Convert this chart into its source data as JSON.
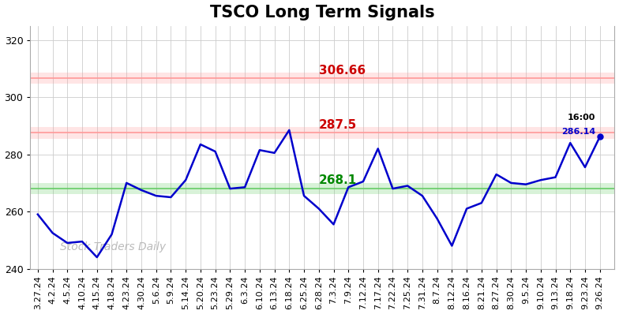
{
  "title": "TSCO Long Term Signals",
  "x_labels": [
    "3.27.24",
    "4.2.24",
    "4.5.24",
    "4.10.24",
    "4.15.24",
    "4.18.24",
    "4.23.24",
    "4.30.24",
    "5.6.24",
    "5.9.24",
    "5.14.24",
    "5.20.24",
    "5.23.24",
    "5.29.24",
    "6.3.24",
    "6.10.24",
    "6.13.24",
    "6.18.24",
    "6.25.24",
    "6.28.24",
    "7.3.24",
    "7.9.24",
    "7.12.24",
    "7.17.24",
    "7.22.24",
    "7.25.24",
    "7.31.24",
    "8.7.24",
    "8.12.24",
    "8.16.24",
    "8.21.24",
    "8.27.24",
    "8.30.24",
    "9.5.24",
    "9.10.24",
    "9.13.24",
    "9.18.24",
    "9.23.24",
    "9.26.24"
  ],
  "y_values": [
    259.0,
    252.5,
    249.0,
    249.5,
    244.0,
    252.0,
    270.0,
    267.5,
    265.5,
    265.0,
    271.0,
    283.5,
    281.0,
    268.0,
    268.5,
    281.5,
    280.5,
    288.5,
    265.5,
    261.0,
    255.5,
    268.5,
    270.5,
    282.0,
    268.0,
    269.0,
    265.5,
    257.5,
    248.0,
    261.0,
    263.0,
    273.0,
    270.0,
    269.5,
    271.0,
    272.0,
    284.0,
    275.5,
    286.14
  ],
  "line_color": "#0000cc",
  "line_width": 1.8,
  "hline_upper": 306.66,
  "hline_middle": 287.5,
  "hline_lower": 268.1,
  "hline_upper_line_color": "#ff9999",
  "hline_middle_line_color": "#ff9999",
  "hline_lower_line_color": "#66cc66",
  "hline_linewidth": 1.2,
  "hline_band_alpha": 0.25,
  "label_upper_color": "#cc0000",
  "label_middle_color": "#cc0000",
  "label_lower_color": "#008800",
  "label_fontsize": 11,
  "end_label_time": "16:00",
  "end_label_price": "286.14",
  "end_label_time_color": "#000000",
  "end_label_price_color": "#0000cc",
  "dot_color": "#0000cc",
  "watermark": "Stock Traders Daily",
  "watermark_color": "#bbbbbb",
  "watermark_fontsize": 10,
  "ylim_min": 240,
  "ylim_max": 325,
  "yticks": [
    240,
    260,
    280,
    300,
    320
  ],
  "background_color": "#ffffff",
  "grid_color": "#cccccc",
  "grid_linewidth": 0.6,
  "spine_color": "#aaaaaa",
  "tick_fontsize": 8,
  "title_fontsize": 15
}
